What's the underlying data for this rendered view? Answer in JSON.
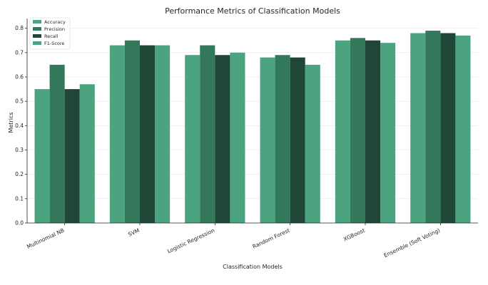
{
  "chart_data": {
    "type": "bar",
    "title": "Performance Metrics of Classification Models",
    "xlabel": "Classification Models",
    "ylabel": "Metrics",
    "ylim": [
      0,
      0.84
    ],
    "yticks": [
      0.0,
      0.1,
      0.2,
      0.3,
      0.4,
      0.5,
      0.6,
      0.7,
      0.8
    ],
    "ytick_labels": [
      "0.0",
      "0.1",
      "0.2",
      "0.3",
      "0.4",
      "0.5",
      "0.6",
      "0.7",
      "0.8"
    ],
    "grid": true,
    "legend_position": "top-left",
    "categories": [
      "Multinomial NB",
      "SVM",
      "Logistic Regression",
      "Random Forest",
      "XGBoost",
      "Ensemble (Soft Voting)"
    ],
    "series": [
      {
        "name": "Accuracy",
        "color": "#4ba37f",
        "values": [
          0.55,
          0.73,
          0.69,
          0.68,
          0.75,
          0.78
        ]
      },
      {
        "name": "Precision",
        "color": "#33785b",
        "values": [
          0.65,
          0.75,
          0.73,
          0.69,
          0.76,
          0.79
        ]
      },
      {
        "name": "Recall",
        "color": "#1f4636",
        "values": [
          0.55,
          0.73,
          0.69,
          0.68,
          0.75,
          0.78
        ]
      },
      {
        "name": "F1-Score",
        "color": "#4ba37f",
        "values": [
          0.57,
          0.73,
          0.7,
          0.65,
          0.74,
          0.77
        ]
      }
    ]
  }
}
